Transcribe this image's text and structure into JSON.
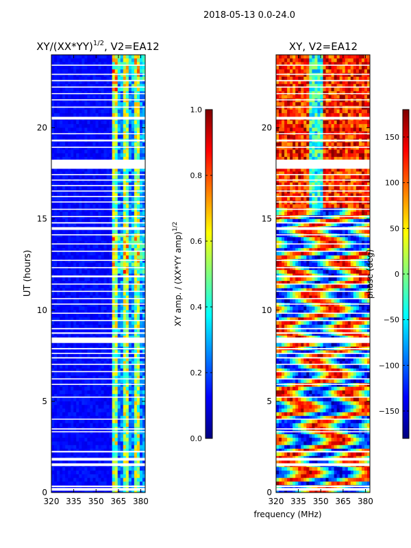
{
  "figure_title": "2018-05-13 0.0-24.0",
  "xlabel": "frequency (MHz)",
  "chart_data": [
    {
      "type": "heatmap",
      "title": "XY/(XX*YY)",
      "title_exponent": "1/2",
      "title_suffix": ", V2=EA12",
      "xlabel": "",
      "ylabel": "UT (hours)",
      "xlim": [
        320,
        383
      ],
      "ylim": [
        0,
        24
      ],
      "x_ticks": [
        320,
        335,
        350,
        365,
        380
      ],
      "y_ticks": [
        0,
        5,
        10,
        15,
        20
      ],
      "colorbar": {
        "label": "XY amp. / (XX*YY amp)",
        "label_exponent": "1/2",
        "range": [
          0.0,
          1.0
        ],
        "ticks": [
          "0.0",
          "0.2",
          "0.4",
          "0.6",
          "0.8",
          "1.0"
        ],
        "colormap": "jet"
      }
    },
    {
      "type": "heatmap",
      "title": "XY, V2=EA12",
      "xlabel": "frequency (MHz)",
      "ylabel": "",
      "xlim": [
        320,
        383
      ],
      "ylim": [
        0,
        24
      ],
      "x_ticks": [
        320,
        335,
        350,
        365,
        380
      ],
      "y_ticks": [
        0,
        5,
        10,
        15,
        20
      ],
      "colorbar": {
        "label": "phase (deg)",
        "range": [
          -180,
          180
        ],
        "ticks": [
          "−150",
          "−100",
          "−50",
          "0",
          "50",
          "100",
          "150"
        ],
        "colormap": "jet"
      }
    }
  ],
  "flagged_ut_bands": [
    [
      0.1,
      0.25
    ],
    [
      0.3,
      0.38
    ],
    [
      1.45,
      1.6
    ],
    [
      1.75,
      1.9
    ],
    [
      2.2,
      2.28
    ],
    [
      3.3,
      3.36
    ],
    [
      3.45,
      3.52
    ],
    [
      4.0,
      4.05
    ],
    [
      5.2,
      5.26
    ],
    [
      5.9,
      5.96
    ],
    [
      6.2,
      6.26
    ],
    [
      6.6,
      6.66
    ],
    [
      7.0,
      7.06
    ],
    [
      7.35,
      7.42
    ],
    [
      7.6,
      7.66
    ],
    [
      7.85,
      7.92
    ],
    [
      8.2,
      8.5
    ],
    [
      8.7,
      8.78
    ],
    [
      8.95,
      9.02
    ],
    [
      9.4,
      9.46
    ],
    [
      9.8,
      9.86
    ],
    [
      10.3,
      10.36
    ],
    [
      10.6,
      10.66
    ],
    [
      11.0,
      11.06
    ],
    [
      11.4,
      11.46
    ],
    [
      11.8,
      11.9
    ],
    [
      12.3,
      12.36
    ],
    [
      12.7,
      12.76
    ],
    [
      13.2,
      13.26
    ],
    [
      13.6,
      13.66
    ],
    [
      14.1,
      14.16
    ],
    [
      14.4,
      14.55
    ],
    [
      14.75,
      14.82
    ],
    [
      15.1,
      15.16
    ],
    [
      15.5,
      15.56
    ],
    [
      15.9,
      15.96
    ],
    [
      16.2,
      16.26
    ],
    [
      16.5,
      16.56
    ],
    [
      16.8,
      16.86
    ],
    [
      17.1,
      17.16
    ],
    [
      17.4,
      17.46
    ],
    [
      17.75,
      18.25
    ],
    [
      18.9,
      18.96
    ],
    [
      19.25,
      19.35
    ],
    [
      19.65,
      19.7
    ],
    [
      20.45,
      20.6
    ],
    [
      21.1,
      21.16
    ],
    [
      21.5,
      21.56
    ],
    [
      21.85,
      21.9
    ],
    [
      22.2,
      22.26
    ],
    [
      22.55,
      22.62
    ],
    [
      22.9,
      22.96
    ],
    [
      23.4,
      23.46
    ]
  ]
}
